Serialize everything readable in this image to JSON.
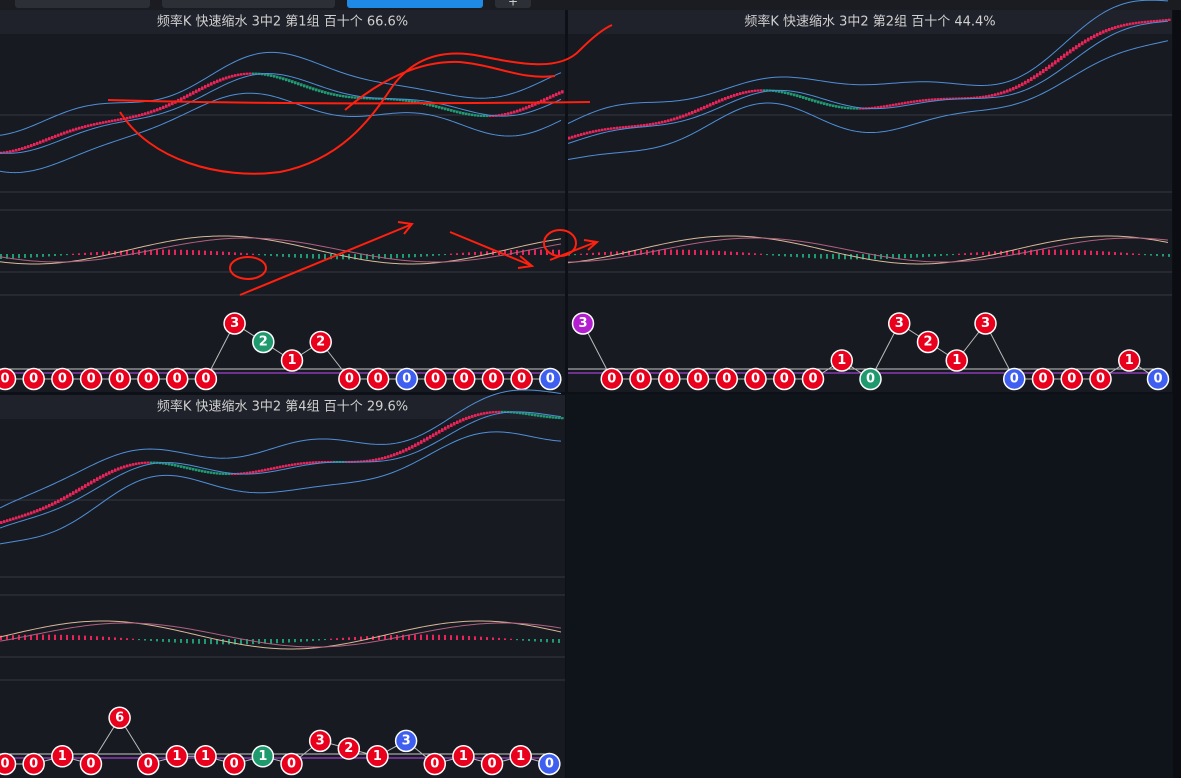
{
  "tabs": {
    "add": "+"
  },
  "panels": [
    {
      "title": "频率K  快速缩水  3中2 第1组  百十个  66.6%",
      "balls": [
        0,
        0,
        0,
        0,
        0,
        0,
        0,
        0,
        3,
        2,
        1,
        2,
        0,
        0,
        0,
        0,
        0,
        0,
        0,
        0
      ],
      "ball_colors": [
        "#e8001c",
        "#e8001c",
        "#e8001c",
        "#e8001c",
        "#e8001c",
        "#e8001c",
        "#e8001c",
        "#e8001c",
        "#e8001c",
        "#1e9a6e",
        "#e8001c",
        "#e8001c",
        "#e8001c",
        "#e8001c",
        "#3f5ff0",
        "#e8001c",
        "#e8001c",
        "#e8001c",
        "#e8001c",
        "#3f5ff0"
      ]
    },
    {
      "title": "频率K  快速缩水  3中2 第2组  百十个  44.4%",
      "balls": [
        3,
        0,
        0,
        0,
        0,
        0,
        0,
        0,
        0,
        1,
        0,
        3,
        2,
        1,
        3,
        0,
        0,
        0,
        0,
        1,
        0
      ],
      "ball_colors": [
        "#b21ed0",
        "#e8001c",
        "#e8001c",
        "#e8001c",
        "#e8001c",
        "#e8001c",
        "#e8001c",
        "#e8001c",
        "#e8001c",
        "#e8001c",
        "#1e9a6e",
        "#e8001c",
        "#e8001c",
        "#e8001c",
        "#e8001c",
        "#3f5ff0",
        "#e8001c",
        "#e8001c",
        "#e8001c",
        "#e8001c",
        "#3f5ff0"
      ]
    },
    {
      "title": "频率K  快速缩水  3中2 第4组  百十个  29.6%",
      "balls": [
        0,
        0,
        1,
        0,
        6,
        0,
        1,
        1,
        0,
        1,
        0,
        3,
        2,
        1,
        3,
        0,
        1,
        0,
        1,
        0
      ],
      "ball_colors": [
        "#e8001c",
        "#e8001c",
        "#e8001c",
        "#e8001c",
        "#e8001c",
        "#e8001c",
        "#e8001c",
        "#e8001c",
        "#e8001c",
        "#1e9a6e",
        "#e8001c",
        "#e8001c",
        "#e8001c",
        "#e8001c",
        "#3f5ff0",
        "#e8001c",
        "#e8001c",
        "#e8001c",
        "#e8001c",
        "#3f5ff0"
      ]
    }
  ]
}
